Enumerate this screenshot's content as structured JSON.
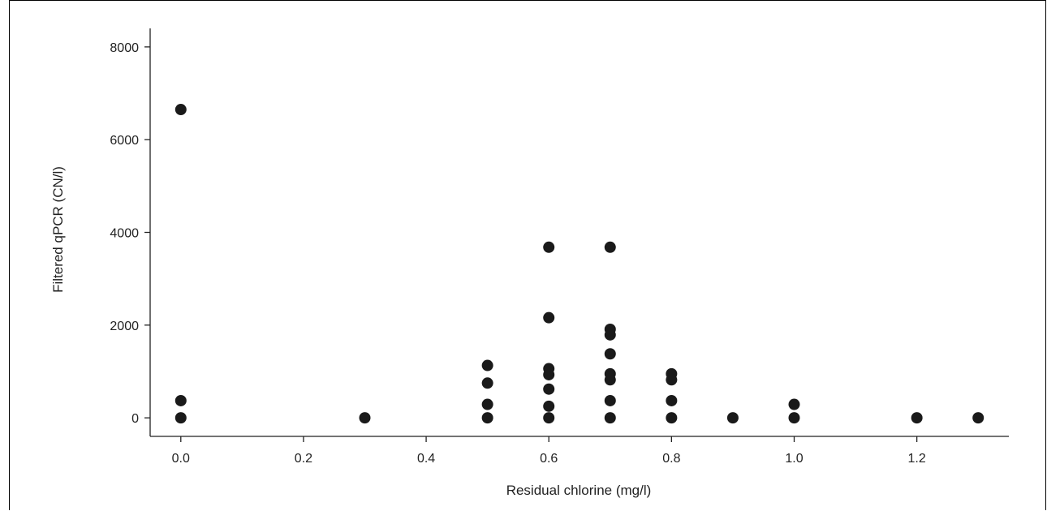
{
  "chart_data": {
    "type": "scatter",
    "title": "",
    "xlabel": "Residual chlorine (mg/l)",
    "ylabel": "Filtered qPCR (CN/l)",
    "xlim": [
      -0.05,
      1.35
    ],
    "ylim": [
      -400,
      8400
    ],
    "xticks": [
      0.0,
      0.2,
      0.4,
      0.6,
      0.8,
      1.0,
      1.2
    ],
    "xtick_labels": [
      "0.0",
      "0.2",
      "0.4",
      "0.6",
      "0.8",
      "1.0",
      "1.2"
    ],
    "yticks": [
      0,
      2000,
      4000,
      6000,
      8000
    ],
    "ytick_labels": [
      "0",
      "2000",
      "4000",
      "6000",
      "8000"
    ],
    "grid": false,
    "marker_color": "#1a1a1a",
    "points": [
      {
        "x": 0.0,
        "y": 6650
      },
      {
        "x": 0.0,
        "y": 370
      },
      {
        "x": 0.0,
        "y": 0
      },
      {
        "x": 0.3,
        "y": 0
      },
      {
        "x": 0.5,
        "y": 1130
      },
      {
        "x": 0.5,
        "y": 750
      },
      {
        "x": 0.5,
        "y": 290
      },
      {
        "x": 0.5,
        "y": 0
      },
      {
        "x": 0.6,
        "y": 3680
      },
      {
        "x": 0.6,
        "y": 2160
      },
      {
        "x": 0.6,
        "y": 1060
      },
      {
        "x": 0.6,
        "y": 930
      },
      {
        "x": 0.6,
        "y": 620
      },
      {
        "x": 0.6,
        "y": 250
      },
      {
        "x": 0.6,
        "y": 0
      },
      {
        "x": 0.7,
        "y": 3680
      },
      {
        "x": 0.7,
        "y": 1910
      },
      {
        "x": 0.7,
        "y": 1790
      },
      {
        "x": 0.7,
        "y": 1380
      },
      {
        "x": 0.7,
        "y": 950
      },
      {
        "x": 0.7,
        "y": 820
      },
      {
        "x": 0.7,
        "y": 370
      },
      {
        "x": 0.7,
        "y": 0
      },
      {
        "x": 0.8,
        "y": 950
      },
      {
        "x": 0.8,
        "y": 820
      },
      {
        "x": 0.8,
        "y": 370
      },
      {
        "x": 0.8,
        "y": 0
      },
      {
        "x": 0.9,
        "y": 0
      },
      {
        "x": 1.0,
        "y": 290
      },
      {
        "x": 1.0,
        "y": 0
      },
      {
        "x": 1.2,
        "y": 0
      },
      {
        "x": 1.3,
        "y": 0
      }
    ]
  }
}
